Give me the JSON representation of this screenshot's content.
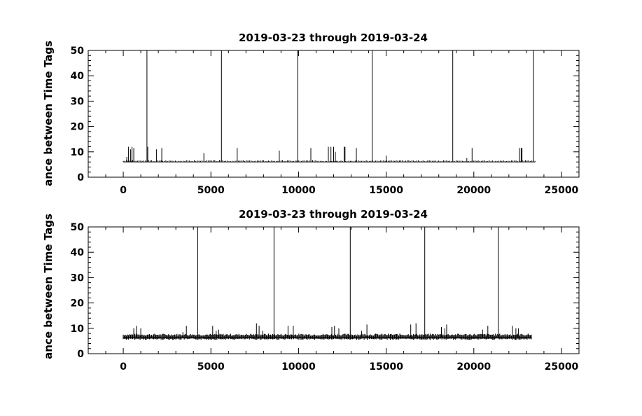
{
  "chart_data": [
    {
      "type": "line",
      "title": "2019-03-23 through 2019-03-24",
      "xlabel": "",
      "ylabel": "ance between Time Tags",
      "xlim": [
        -2000,
        26000
      ],
      "ylim": [
        0,
        50
      ],
      "xticks": [
        0,
        5000,
        10000,
        15000,
        20000,
        25000
      ],
      "xtick_labels": [
        "0",
        "5000",
        "10000",
        "15000",
        "20000",
        "25000"
      ],
      "yticks": [
        0,
        10,
        20,
        30,
        40,
        50
      ],
      "ytick_labels": [
        "0",
        "10",
        "20",
        "30",
        "40",
        "50"
      ],
      "grid": false,
      "baseline": 6,
      "x_extent": [
        0,
        23500
      ],
      "big_spikes_x": [
        1350,
        5600,
        9950,
        14200,
        18800,
        23400
      ],
      "spikes": [
        [
          100,
          6.5
        ],
        [
          200,
          8
        ],
        [
          300,
          12
        ],
        [
          420,
          11
        ],
        [
          500,
          12
        ],
        [
          600,
          11.5
        ],
        [
          1400,
          12
        ],
        [
          1900,
          11
        ],
        [
          2200,
          11.5
        ],
        [
          4600,
          9.5
        ],
        [
          6500,
          11.5
        ],
        [
          8900,
          10.5
        ],
        [
          10700,
          11.5
        ],
        [
          11700,
          12
        ],
        [
          11850,
          12
        ],
        [
          12000,
          12
        ],
        [
          12100,
          10
        ],
        [
          12600,
          12
        ],
        [
          12650,
          12
        ],
        [
          13300,
          11.5
        ],
        [
          15000,
          8.5
        ],
        [
          19600,
          7.5
        ],
        [
          19900,
          11.5
        ],
        [
          22600,
          11.5
        ],
        [
          22700,
          11.5
        ],
        [
          22750,
          11.5
        ]
      ]
    },
    {
      "type": "line",
      "title": "2019-03-23 through 2019-03-24",
      "xlabel": "",
      "ylabel": "ance between Time Tags",
      "xlim": [
        -2000,
        26000
      ],
      "ylim": [
        0,
        50
      ],
      "xticks": [
        0,
        5000,
        10000,
        15000,
        20000,
        25000
      ],
      "xtick_labels": [
        "0",
        "5000",
        "10000",
        "15000",
        "20000",
        "25000"
      ],
      "yticks": [
        0,
        10,
        20,
        30,
        40,
        50
      ],
      "ytick_labels": [
        "0",
        "10",
        "20",
        "30",
        "40",
        "50"
      ],
      "grid": false,
      "baseline": 6.5,
      "x_extent": [
        0,
        23300
      ],
      "big_spikes_x": [
        4250,
        8600,
        12950,
        17200,
        21400
      ],
      "spikes": [
        [
          600,
          10
        ],
        [
          750,
          11
        ],
        [
          1000,
          10
        ],
        [
          3400,
          8.5
        ],
        [
          3600,
          11
        ],
        [
          5100,
          11
        ],
        [
          5300,
          9
        ],
        [
          5450,
          9.5
        ],
        [
          7600,
          12
        ],
        [
          7750,
          11
        ],
        [
          7950,
          9
        ],
        [
          9400,
          11
        ],
        [
          9700,
          11
        ],
        [
          11900,
          10.5
        ],
        [
          12050,
          11
        ],
        [
          12300,
          10
        ],
        [
          13600,
          9
        ],
        [
          13900,
          11.5
        ],
        [
          16400,
          11.5
        ],
        [
          16700,
          12
        ],
        [
          18150,
          10.5
        ],
        [
          18350,
          10
        ],
        [
          18450,
          11.5
        ],
        [
          20500,
          9.5
        ],
        [
          20800,
          11
        ],
        [
          22200,
          11
        ],
        [
          22400,
          10
        ],
        [
          22550,
          10
        ]
      ]
    }
  ]
}
